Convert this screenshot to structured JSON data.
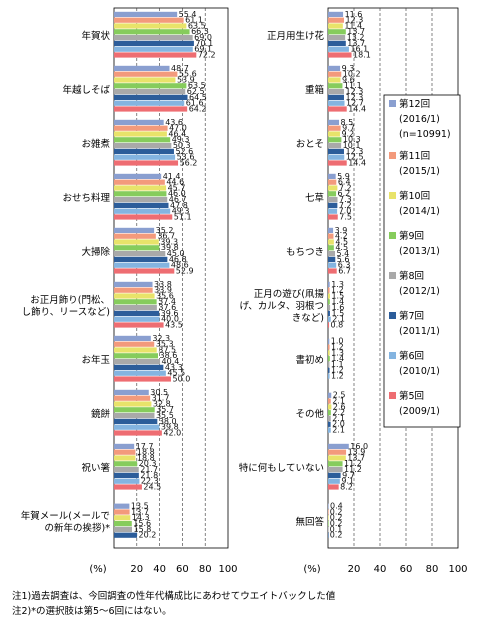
{
  "chart_data": {
    "type": "bar",
    "orientation": "horizontal",
    "unit_label": "(%)",
    "xlim": [
      0,
      100
    ],
    "xticks": [
      0,
      20,
      40,
      60,
      80,
      100
    ],
    "grid": "dashed vertical lines at 20, 40, 60, 80",
    "legend_position": "inside right panel, right side",
    "series": [
      {
        "name": "第12回",
        "sub": "(2016/1)",
        "sub2": "(n=10991)",
        "color": "#8a9fd0"
      },
      {
        "name": "第11回",
        "sub": "(2015/1)",
        "color": "#f39a7c"
      },
      {
        "name": "第10回",
        "sub": "(2014/1)",
        "color": "#e8e36a"
      },
      {
        "name": "第9回",
        "sub": "(2013/1)",
        "color": "#86cc5c"
      },
      {
        "name": "第8回",
        "sub": "(2012/1)",
        "color": "#a9a9a9"
      },
      {
        "name": "第7回",
        "sub": "(2011/1)",
        "color": "#2c5d9a"
      },
      {
        "name": "第6回",
        "sub": "(2010/1)",
        "color": "#84b4e0"
      },
      {
        "name": "第5回",
        "sub": "(2009/1)",
        "color": "#ee6d72"
      }
    ],
    "panels": [
      {
        "categories": [
          {
            "label": [
              "年賀状"
            ],
            "values": [
              55.4,
              61.1,
              63.5,
              66.3,
              69.0,
              70.1,
              69.1,
              72.2
            ]
          },
          {
            "label": [
              "年越しそば"
            ],
            "values": [
              48.7,
              55.6,
              53.9,
              63.5,
              62.5,
              64.5,
              61.6,
              64.2
            ]
          },
          {
            "label": [
              "お雑煮"
            ],
            "values": [
              43.6,
              47.0,
              46.4,
              49.3,
              50.3,
              52.6,
              53.6,
              56.2
            ]
          },
          {
            "label": [
              "おせち料理"
            ],
            "values": [
              41.4,
              44.6,
              45.7,
              46.0,
              46.7,
              47.8,
              49.3,
              51.1
            ]
          },
          {
            "label": [
              "大掃除"
            ],
            "values": [
              35.2,
              36.7,
              39.3,
              39.8,
              45.0,
              46.8,
              48.6,
              52.9
            ]
          },
          {
            "label": [
              "お正月飾り(門松、",
              "し飾り、リースなど)"
            ],
            "values": [
              33.8,
              33.9,
              35.6,
              37.4,
              37.6,
              39.6,
              40.0,
              43.5
            ]
          },
          {
            "label": [
              "お年玉"
            ],
            "values": [
              32.3,
              35.3,
              37.5,
              38.6,
              40.4,
              43.3,
              45.5,
              50.0
            ]
          },
          {
            "label": [
              "鏡餅"
            ],
            "values": [
              30.5,
              31.7,
              32.8,
              35.7,
              35.5,
              38.0,
              39.8,
              42.0
            ]
          },
          {
            "label": [
              "祝い箸"
            ],
            "values": [
              17.7,
              18.8,
              18.8,
              20.3,
              21.7,
              21.8,
              22.3,
              24.5
            ]
          },
          {
            "label": [
              "年賀メール(メールで",
              "の新年の挨拶)*"
            ],
            "values": [
              13.5,
              13.7,
              14.3,
              15.6,
              15.8,
              20.2
            ]
          }
        ]
      },
      {
        "categories": [
          {
            "label": [
              "正月用生け花"
            ],
            "values": [
              11.6,
              12.3,
              11.4,
              13.7,
              13.2,
              13.7,
              16.1,
              18.1
            ]
          },
          {
            "label": [
              "重箱"
            ],
            "values": [
              9.3,
              10.2,
              9.6,
              11.1,
              12.3,
              12.3,
              12.7,
              14.4
            ]
          },
          {
            "label": [
              "おとそ"
            ],
            "values": [
              8.5,
              9.7,
              9.2,
              10.3,
              10.1,
              12.3,
              12.5,
              14.4
            ]
          },
          {
            "label": [
              "七草"
            ],
            "values": [
              5.9,
              6.4,
              7.2,
              6.2,
              7.3,
              7.2,
              7.0,
              7.5
            ]
          },
          {
            "label": [
              "もちつき"
            ],
            "values": [
              3.9,
              4.2,
              4.5,
              4.5,
              5.4,
              5.6,
              6.3,
              6.7
            ]
          },
          {
            "label": [
              "正月の遊び(凧揚",
              "げ、カルタ、羽根つ",
              "きなど)"
            ],
            "values": [
              1.3,
              1.2,
              1.5,
              1.4,
              1.6,
              1.5,
              2.1,
              0.8
            ]
          },
          {
            "label": [
              "書初め"
            ],
            "values": [
              1.0,
              1.2,
              1.3,
              1.4,
              1.1,
              1.2,
              1.2
            ]
          },
          {
            "label": [
              "その他"
            ],
            "values": [
              2.5,
              2.1,
              2.6,
              2.2,
              2.1,
              2.0,
              2.1
            ]
          },
          {
            "label": [
              "特に何もしていない"
            ],
            "values": [
              16.0,
              13.9,
              13.7,
              11.2,
              11.2,
              9.7,
              9.1,
              8.2
            ]
          },
          {
            "label": [
              "無回答"
            ],
            "values": [
              0.4,
              0.2,
              0.2,
              0.2,
              0.1,
              0.2
            ]
          }
        ]
      }
    ]
  },
  "notes": [
    "注1)過去調査は、今回調査の性年代構成比にあわせてウエイトバックした値",
    "注2)*の選択肢は第5～6回にはない。"
  ]
}
